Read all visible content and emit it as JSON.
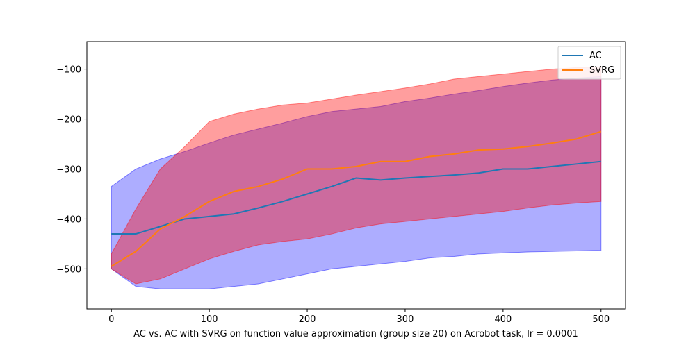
{
  "chart_data": {
    "type": "line",
    "title": "",
    "caption": "AC vs. AC with SVRG on function value approximation (group size 20) on Acrobot task, lr = 0.0001",
    "xlabel": "",
    "ylabel": "",
    "xlim": [
      -25,
      525
    ],
    "ylim": [
      -580,
      -45
    ],
    "xticks": [
      0,
      100,
      200,
      300,
      400,
      500
    ],
    "yticks": [
      -500,
      -400,
      -300,
      -200,
      -100
    ],
    "xtick_labels": [
      "0",
      "100",
      "200",
      "300",
      "400",
      "500"
    ],
    "ytick_labels": [
      "−500",
      "−400",
      "−300",
      "−200",
      "−100"
    ],
    "legend_position": "top-right",
    "grid": false,
    "series": [
      {
        "name": "AC",
        "color": "#1f77b4",
        "band_color": "#0000ff",
        "x": [
          0,
          25,
          50,
          75,
          100,
          125,
          150,
          175,
          200,
          225,
          250,
          275,
          300,
          325,
          350,
          375,
          400,
          425,
          450,
          475,
          500
        ],
        "mean": [
          -430,
          -430,
          -415,
          -400,
          -395,
          -390,
          -378,
          -365,
          -350,
          -335,
          -318,
          -322,
          -318,
          -315,
          -312,
          -308,
          -300,
          -300,
          -295,
          -290,
          -285
        ],
        "upper": [
          -335,
          -300,
          -280,
          -265,
          -248,
          -232,
          -220,
          -208,
          -195,
          -185,
          -180,
          -175,
          -165,
          -158,
          -150,
          -143,
          -135,
          -128,
          -122,
          -118,
          -115
        ],
        "lower": [
          -500,
          -535,
          -540,
          -540,
          -540,
          -535,
          -530,
          -520,
          -510,
          -500,
          -495,
          -490,
          -485,
          -478,
          -475,
          -470,
          -468,
          -466,
          -465,
          -464,
          -463
        ]
      },
      {
        "name": "SVRG",
        "color": "#ff7f0e",
        "band_color": "#ff0000",
        "x": [
          0,
          25,
          50,
          75,
          100,
          125,
          150,
          175,
          200,
          225,
          250,
          275,
          300,
          325,
          350,
          375,
          400,
          425,
          450,
          475,
          500
        ],
        "mean": [
          -495,
          -465,
          -420,
          -395,
          -365,
          -345,
          -335,
          -320,
          -300,
          -300,
          -295,
          -285,
          -285,
          -275,
          -270,
          -262,
          -260,
          -255,
          -248,
          -240,
          -225
        ],
        "upper": [
          -470,
          -380,
          -300,
          -255,
          -205,
          -190,
          -180,
          -172,
          -168,
          -160,
          -152,
          -145,
          -138,
          -130,
          -120,
          -115,
          -110,
          -105,
          -100,
          -97,
          -95
        ],
        "lower": [
          -500,
          -530,
          -520,
          -500,
          -480,
          -465,
          -452,
          -445,
          -440,
          -430,
          -418,
          -410,
          -405,
          -400,
          -395,
          -390,
          -385,
          -378,
          -372,
          -368,
          -365
        ]
      }
    ]
  }
}
